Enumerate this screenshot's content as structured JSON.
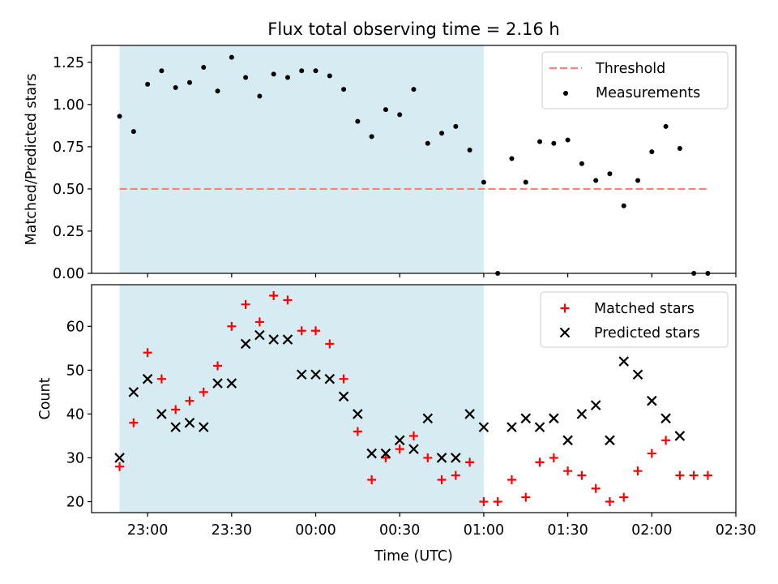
{
  "chart_data": [
    {
      "type": "scatter",
      "title": "Flux total observing time = 2.16 h",
      "ylabel": "Matched/Predicted stars",
      "xlabel": "",
      "ylim": [
        0,
        1.35
      ],
      "yticks": [
        "0.00",
        "0.25",
        "0.50",
        "0.75",
        "1.00",
        "1.25"
      ],
      "shaded_interval": [
        "22:50",
        "01:00"
      ],
      "shade_color": "#add8e6",
      "legend_position": "top-right",
      "series": [
        {
          "name": "Threshold",
          "kind": "line",
          "style": "dashed",
          "color": "#ff7f7f",
          "x": [
            "22:50",
            "02:20"
          ],
          "y": [
            0.5,
            0.5
          ]
        },
        {
          "name": "Measurements",
          "kind": "points",
          "marker": "dot",
          "color": "#000000",
          "points": [
            [
              "22:50",
              0.93
            ],
            [
              "22:55",
              0.84
            ],
            [
              "23:00",
              1.12
            ],
            [
              "23:05",
              1.2
            ],
            [
              "23:10",
              1.1
            ],
            [
              "23:15",
              1.13
            ],
            [
              "23:20",
              1.22
            ],
            [
              "23:25",
              1.08
            ],
            [
              "23:30",
              1.28
            ],
            [
              "23:35",
              1.16
            ],
            [
              "23:40",
              1.05
            ],
            [
              "23:45",
              1.18
            ],
            [
              "23:50",
              1.16
            ],
            [
              "23:55",
              1.2
            ],
            [
              "00:00",
              1.2
            ],
            [
              "00:05",
              1.17
            ],
            [
              "00:10",
              1.09
            ],
            [
              "00:15",
              0.9
            ],
            [
              "00:20",
              0.81
            ],
            [
              "00:25",
              0.97
            ],
            [
              "00:30",
              0.94
            ],
            [
              "00:35",
              1.09
            ],
            [
              "00:40",
              0.77
            ],
            [
              "00:45",
              0.83
            ],
            [
              "00:50",
              0.87
            ],
            [
              "00:55",
              0.73
            ],
            [
              "01:00",
              0.54
            ],
            [
              "01:05",
              0.0
            ],
            [
              "01:10",
              0.68
            ],
            [
              "01:15",
              0.54
            ],
            [
              "01:20",
              0.78
            ],
            [
              "01:25",
              0.77
            ],
            [
              "01:30",
              0.79
            ],
            [
              "01:35",
              0.65
            ],
            [
              "01:40",
              0.55
            ],
            [
              "01:45",
              0.59
            ],
            [
              "01:50",
              0.4
            ],
            [
              "01:55",
              0.55
            ],
            [
              "02:00",
              0.72
            ],
            [
              "02:05",
              0.87
            ],
            [
              "02:10",
              0.74
            ],
            [
              "02:15",
              0.0
            ],
            [
              "02:20",
              0.0
            ]
          ]
        }
      ]
    },
    {
      "type": "scatter",
      "title": "",
      "ylabel": "Count",
      "xlabel": "Time (UTC)",
      "ylim": [
        17.5,
        69.5
      ],
      "yticks": [
        "20",
        "30",
        "40",
        "50",
        "60"
      ],
      "xticks": [
        "23:00",
        "23:30",
        "00:00",
        "00:30",
        "01:00",
        "01:30",
        "02:00",
        "02:30"
      ],
      "xlim": [
        "22:40",
        "02:30"
      ],
      "shaded_interval": [
        "22:50",
        "01:00"
      ],
      "shade_color": "#add8e6",
      "legend_position": "top-right",
      "series": [
        {
          "name": "Matched stars",
          "kind": "points",
          "marker": "plus",
          "color": "#ff0000",
          "points": [
            [
              "22:50",
              28
            ],
            [
              "22:55",
              38
            ],
            [
              "23:00",
              54
            ],
            [
              "23:05",
              48
            ],
            [
              "23:10",
              41
            ],
            [
              "23:15",
              43
            ],
            [
              "23:20",
              45
            ],
            [
              "23:25",
              51
            ],
            [
              "23:30",
              60
            ],
            [
              "23:35",
              65
            ],
            [
              "23:40",
              61
            ],
            [
              "23:45",
              67
            ],
            [
              "23:50",
              66
            ],
            [
              "23:55",
              59
            ],
            [
              "00:00",
              59
            ],
            [
              "00:05",
              56
            ],
            [
              "00:10",
              48
            ],
            [
              "00:15",
              36
            ],
            [
              "00:20",
              25
            ],
            [
              "00:25",
              30
            ],
            [
              "00:30",
              32
            ],
            [
              "00:35",
              35
            ],
            [
              "00:40",
              30
            ],
            [
              "00:45",
              25
            ],
            [
              "00:50",
              26
            ],
            [
              "00:55",
              29
            ],
            [
              "01:00",
              20
            ],
            [
              "01:05",
              20
            ],
            [
              "01:10",
              25
            ],
            [
              "01:15",
              21
            ],
            [
              "01:20",
              29
            ],
            [
              "01:25",
              30
            ],
            [
              "01:30",
              27
            ],
            [
              "01:35",
              26
            ],
            [
              "01:40",
              23
            ],
            [
              "01:45",
              20
            ],
            [
              "01:50",
              21
            ],
            [
              "01:55",
              27
            ],
            [
              "02:00",
              31
            ],
            [
              "02:05",
              34
            ],
            [
              "02:10",
              26
            ],
            [
              "02:15",
              26
            ],
            [
              "02:20",
              26
            ]
          ]
        },
        {
          "name": "Predicted stars",
          "kind": "points",
          "marker": "x",
          "color": "#000000",
          "points": [
            [
              "22:50",
              30
            ],
            [
              "22:55",
              45
            ],
            [
              "23:00",
              48
            ],
            [
              "23:05",
              40
            ],
            [
              "23:10",
              37
            ],
            [
              "23:15",
              38
            ],
            [
              "23:20",
              37
            ],
            [
              "23:25",
              47
            ],
            [
              "23:30",
              47
            ],
            [
              "23:35",
              56
            ],
            [
              "23:40",
              58
            ],
            [
              "23:45",
              57
            ],
            [
              "23:50",
              57
            ],
            [
              "23:55",
              49
            ],
            [
              "00:00",
              49
            ],
            [
              "00:05",
              48
            ],
            [
              "00:10",
              44
            ],
            [
              "00:15",
              40
            ],
            [
              "00:20",
              31
            ],
            [
              "00:25",
              31
            ],
            [
              "00:30",
              34
            ],
            [
              "00:35",
              32
            ],
            [
              "00:40",
              39
            ],
            [
              "00:45",
              30
            ],
            [
              "00:50",
              30
            ],
            [
              "00:55",
              40
            ],
            [
              "01:00",
              37
            ],
            [
              "01:10",
              37
            ],
            [
              "01:15",
              39
            ],
            [
              "01:20",
              37
            ],
            [
              "01:25",
              39
            ],
            [
              "01:30",
              34
            ],
            [
              "01:35",
              40
            ],
            [
              "01:40",
              42
            ],
            [
              "01:45",
              34
            ],
            [
              "01:50",
              52
            ],
            [
              "01:55",
              49
            ],
            [
              "02:00",
              43
            ],
            [
              "02:05",
              39
            ],
            [
              "02:10",
              35
            ]
          ]
        }
      ]
    }
  ]
}
